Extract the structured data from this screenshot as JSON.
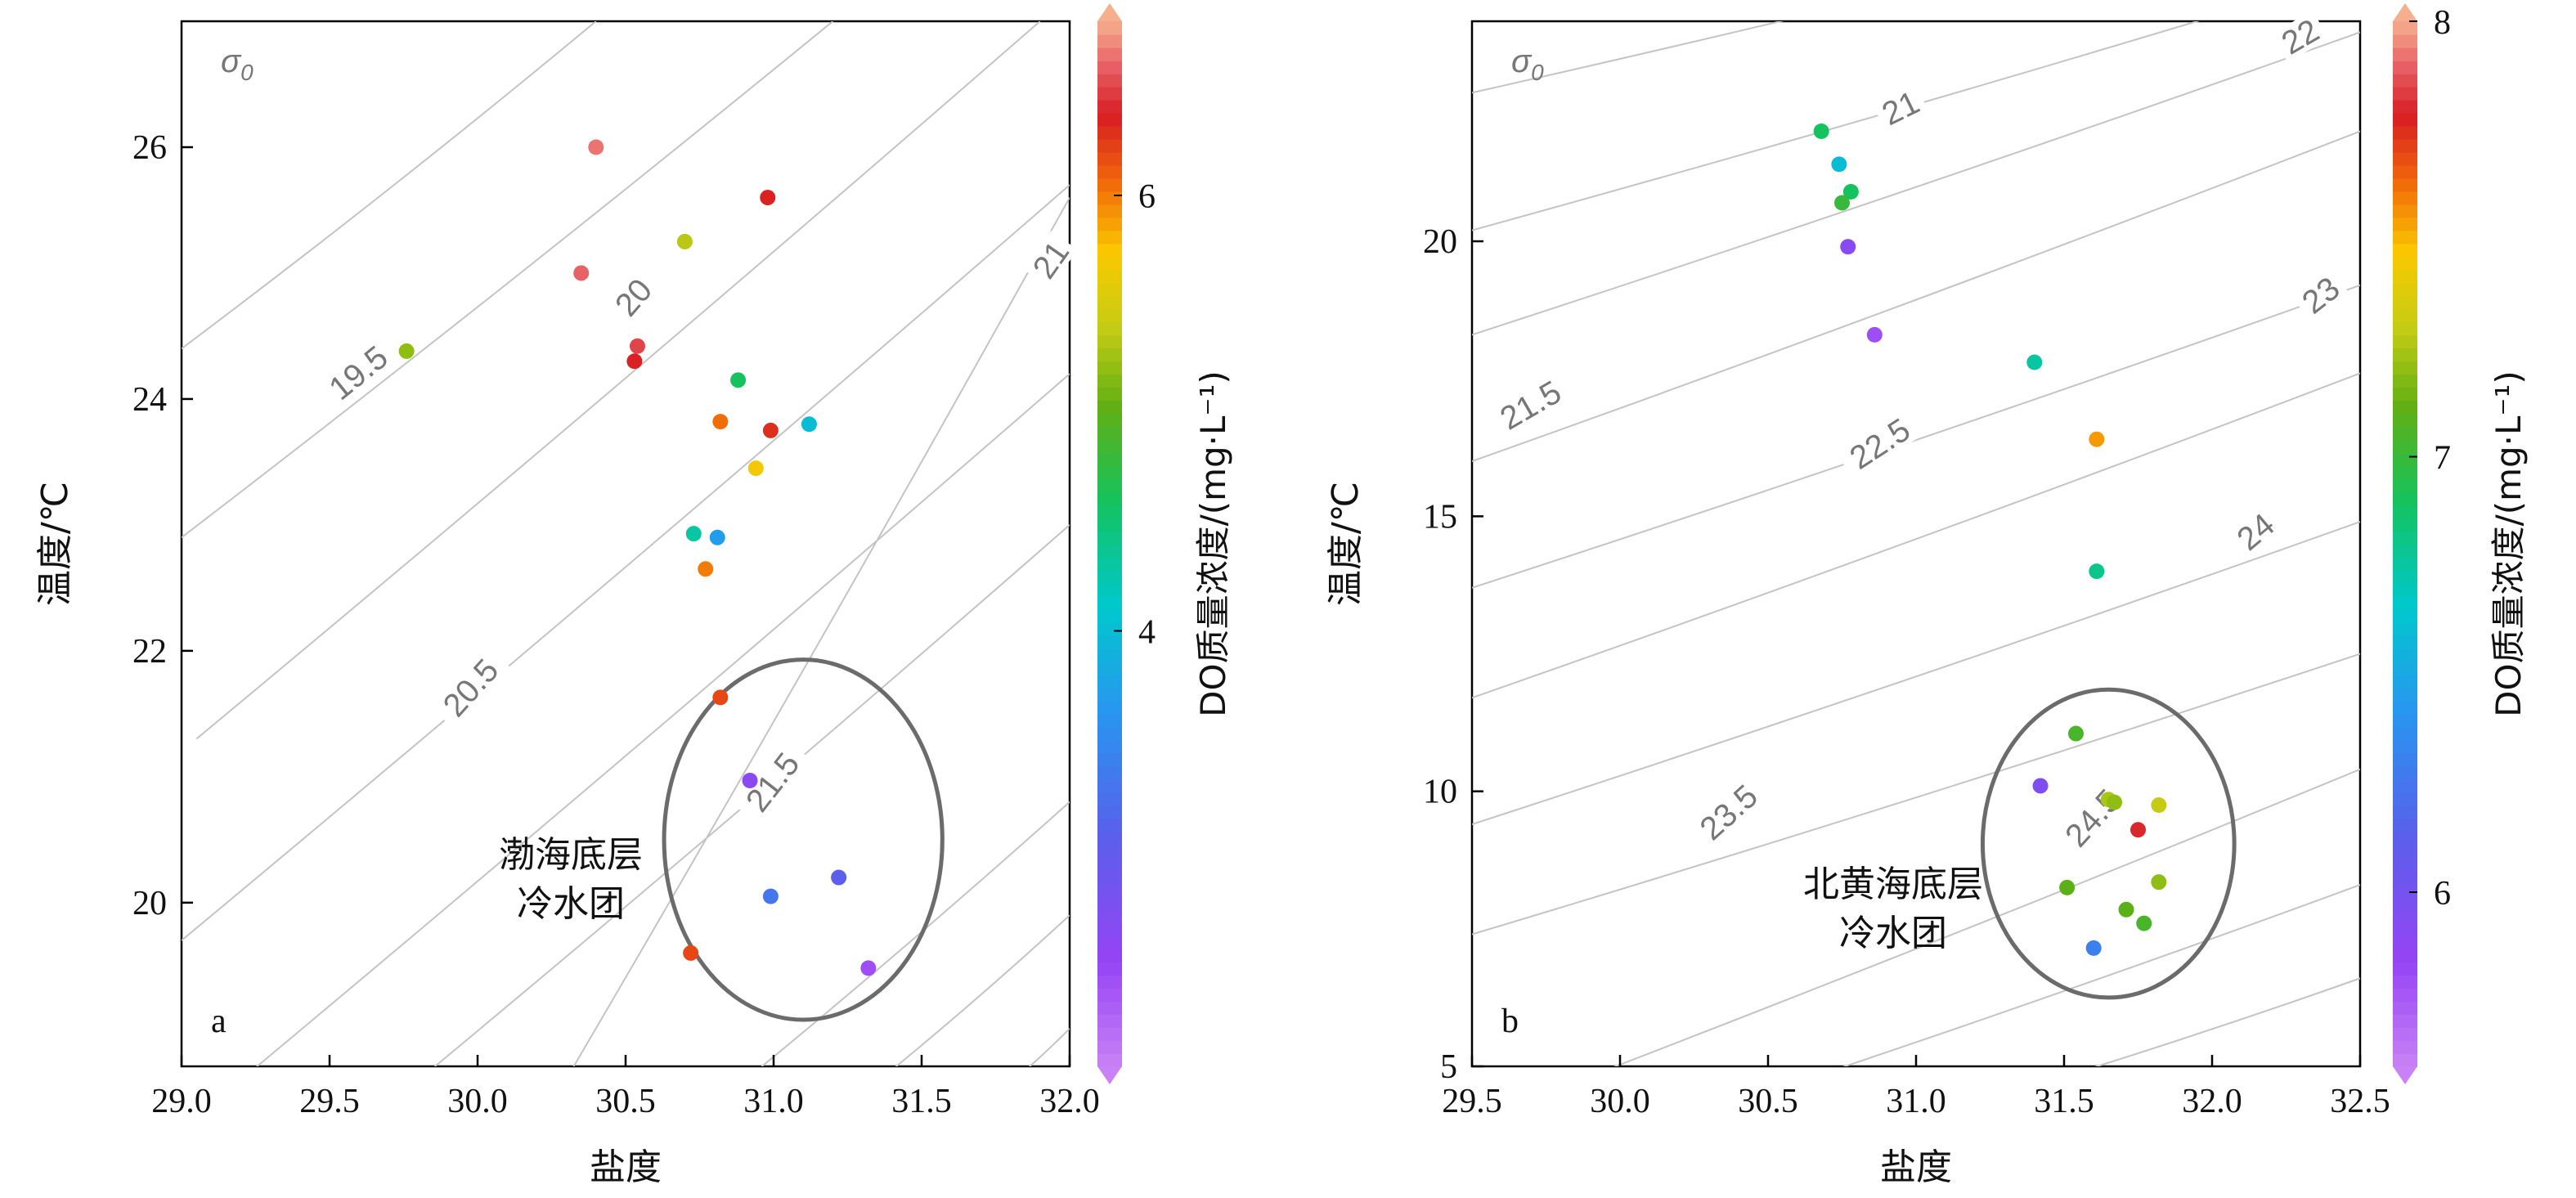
{
  "chart_data": [
    {
      "type": "scatter",
      "panel_label": "a",
      "xlabel": "盐度",
      "ylabel": "温度/℃",
      "xlim": [
        29.0,
        32.0
      ],
      "ylim": [
        18.7,
        27.0
      ],
      "xticks": [
        "29.0",
        "29.5",
        "30.0",
        "30.5",
        "31.0",
        "31.5",
        "32.0"
      ],
      "yticks": [
        "20",
        "22",
        "24",
        "26"
      ],
      "grid": false,
      "contour_symbol": "σ",
      "contour_symbol_sub": "0",
      "contours": [
        {
          "label": "19.5",
          "p1": [
            29.0,
            24.4
          ],
          "p2": [
            30.4,
            27.0
          ],
          "label_at": [
            29.6,
            24.2
          ],
          "rot": -39
        },
        {
          "label": "",
          "p1": [
            29.0,
            22.9
          ],
          "p2": [
            31.2,
            27.0
          ],
          "label_at": null,
          "rot": 0
        },
        {
          "label": "20",
          "p1": [
            29.05,
            21.3
          ],
          "p2": [
            31.9,
            27.0
          ],
          "label_at": [
            30.53,
            24.8
          ],
          "rot": -49
        },
        {
          "label": "",
          "p1": [
            29.0,
            19.7
          ],
          "p2": [
            32.0,
            25.7
          ],
          "label_at": null,
          "rot": 0
        },
        {
          "label": "20.5",
          "p1": [
            29.0,
            18.2
          ],
          "p2": [
            32.0,
            24.2
          ],
          "label_at": [
            29.98,
            21.7
          ],
          "rot": -48
        },
        {
          "label": "",
          "p1": [
            29.6,
            18.2
          ],
          "p2": [
            32.0,
            23.0
          ],
          "label_at": null,
          "rot": 0
        },
        {
          "label": "21",
          "p1": [
            30.2,
            18.2
          ],
          "p2": [
            32.0,
            25.6
          ],
          "label_at": [
            31.94,
            25.1
          ],
          "rot": -55
        },
        {
          "label": "21.5",
          "p1": [
            30.7,
            18.2
          ],
          "p2": [
            32.0,
            20.8
          ],
          "label_at": [
            31.0,
            20.95
          ],
          "rot": -52
        },
        {
          "label": "",
          "p1": [
            31.15,
            18.2
          ],
          "p2": [
            32.0,
            19.9
          ],
          "label_at": null,
          "rot": 0
        },
        {
          "label": "",
          "p1": [
            31.6,
            18.2
          ],
          "p2": [
            32.0,
            19.0
          ],
          "label_at": null,
          "rot": 0
        }
      ],
      "points": [
        {
          "x": 30.4,
          "y": 26.0,
          "v": 6.65
        },
        {
          "x": 30.98,
          "y": 25.6,
          "v": 6.35
        },
        {
          "x": 30.7,
          "y": 25.25,
          "v": 5.35
        },
        {
          "x": 30.35,
          "y": 25.0,
          "v": 6.6
        },
        {
          "x": 30.54,
          "y": 24.42,
          "v": 6.5
        },
        {
          "x": 29.76,
          "y": 24.38,
          "v": 5.2
        },
        {
          "x": 30.53,
          "y": 24.3,
          "v": 6.35
        },
        {
          "x": 30.88,
          "y": 24.15,
          "v": 4.6
        },
        {
          "x": 30.82,
          "y": 23.82,
          "v": 6.05
        },
        {
          "x": 30.99,
          "y": 23.75,
          "v": 6.3
        },
        {
          "x": 31.12,
          "y": 23.8,
          "v": 4.0
        },
        {
          "x": 30.94,
          "y": 23.45,
          "v": 5.7
        },
        {
          "x": 30.73,
          "y": 22.93,
          "v": 4.3
        },
        {
          "x": 30.81,
          "y": 22.9,
          "v": 3.7
        },
        {
          "x": 30.77,
          "y": 22.65,
          "v": 6.0
        },
        {
          "x": 30.82,
          "y": 21.63,
          "v": 6.2
        },
        {
          "x": 30.92,
          "y": 20.97,
          "v": 2.6
        },
        {
          "x": 31.22,
          "y": 20.2,
          "v": 3.05
        },
        {
          "x": 30.99,
          "y": 20.05,
          "v": 3.3
        },
        {
          "x": 30.72,
          "y": 19.6,
          "v": 6.2
        },
        {
          "x": 31.32,
          "y": 19.48,
          "v": 2.4
        }
      ],
      "ellipse": {
        "cx": 31.1,
        "cy": 20.5,
        "rx": 0.47,
        "ry": 1.43
      },
      "annotation_lines": [
        "渤海底层",
        "冷水团"
      ],
      "colorbar": {
        "label": "DO质量浓度/(mg·L⁻¹)",
        "vmin": 2.0,
        "vmax": 6.8,
        "ticks": [
          "4",
          "6"
        ],
        "tick_values": [
          4,
          6
        ]
      }
    },
    {
      "type": "scatter",
      "panel_label": "b",
      "xlabel": "盐度",
      "ylabel": "温度/℃",
      "xlim": [
        29.5,
        32.5
      ],
      "ylim": [
        5.0,
        24.0
      ],
      "xticks": [
        "29.5",
        "30.0",
        "30.5",
        "31.0",
        "31.5",
        "32.0",
        "32.5"
      ],
      "yticks": [
        "5",
        "10",
        "15",
        "20"
      ],
      "grid": false,
      "contour_symbol": "σ",
      "contour_symbol_sub": "0",
      "contours": [
        {
          "label": "21",
          "p1": [
            29.5,
            22.7
          ],
          "p2": [
            32.5,
            26.6
          ],
          "label_at": [
            30.95,
            22.4
          ],
          "rot": -26
        },
        {
          "label": "",
          "p1": [
            29.5,
            20.2
          ],
          "p2": [
            32.5,
            24.9
          ],
          "label_at": null,
          "rot": 0
        },
        {
          "label": "22",
          "p1": [
            29.5,
            18.3
          ],
          "p2": [
            32.5,
            23.8
          ],
          "label_at": [
            32.3,
            23.7
          ],
          "rot": -30
        },
        {
          "label": "21.5",
          "p1": [
            29.5,
            16.0
          ],
          "p2": [
            32.5,
            22.0
          ],
          "label_at": [
            29.7,
            17.0
          ],
          "rot": -30
        },
        {
          "label": "23",
          "p1": [
            29.5,
            13.7
          ],
          "p2": [
            32.5,
            19.2
          ],
          "label_at": [
            32.37,
            19.0
          ],
          "rot": -38
        },
        {
          "label": "22.5",
          "p1": [
            29.5,
            11.7
          ],
          "p2": [
            32.5,
            17.6
          ],
          "label_at": [
            30.88,
            16.3
          ],
          "rot": -33
        },
        {
          "label": "24",
          "p1": [
            29.5,
            9.4
          ],
          "p2": [
            32.5,
            14.9
          ],
          "label_at": [
            32.15,
            14.7
          ],
          "rot": -40
        },
        {
          "label": "23.5",
          "p1": [
            29.5,
            7.4
          ],
          "p2": [
            32.5,
            12.5
          ],
          "label_at": [
            30.37,
            9.6
          ],
          "rot": -42
        },
        {
          "label": "24.5",
          "p1": [
            29.5,
            4.0
          ],
          "p2": [
            32.5,
            10.4
          ],
          "label_at": [
            31.6,
            9.5
          ],
          "rot": -48
        },
        {
          "label": "",
          "p1": [
            30.2,
            4.0
          ],
          "p2": [
            32.5,
            8.3
          ],
          "label_at": null,
          "rot": 0
        },
        {
          "label": "",
          "p1": [
            31.0,
            4.0
          ],
          "p2": [
            32.5,
            6.6
          ],
          "label_at": null,
          "rot": 0
        }
      ],
      "points": [
        {
          "x": 30.68,
          "y": 22.0,
          "v": 6.9
        },
        {
          "x": 30.74,
          "y": 21.4,
          "v": 6.6
        },
        {
          "x": 30.78,
          "y": 20.9,
          "v": 6.9
        },
        {
          "x": 30.75,
          "y": 20.7,
          "v": 7.0
        },
        {
          "x": 30.77,
          "y": 19.9,
          "v": 5.9
        },
        {
          "x": 30.86,
          "y": 18.3,
          "v": 5.8
        },
        {
          "x": 31.4,
          "y": 17.8,
          "v": 6.75
        },
        {
          "x": 31.61,
          "y": 16.4,
          "v": 7.55
        },
        {
          "x": 31.61,
          "y": 14.0,
          "v": 6.8
        },
        {
          "x": 31.54,
          "y": 11.05,
          "v": 7.05
        },
        {
          "x": 31.42,
          "y": 10.1,
          "v": 5.95
        },
        {
          "x": 31.65,
          "y": 9.85,
          "v": 7.25
        },
        {
          "x": 31.67,
          "y": 9.8,
          "v": 7.2
        },
        {
          "x": 31.82,
          "y": 9.75,
          "v": 7.3
        },
        {
          "x": 31.75,
          "y": 9.3,
          "v": 7.8
        },
        {
          "x": 31.82,
          "y": 8.35,
          "v": 7.2
        },
        {
          "x": 31.51,
          "y": 8.25,
          "v": 7.1
        },
        {
          "x": 31.71,
          "y": 7.85,
          "v": 7.1
        },
        {
          "x": 31.77,
          "y": 7.6,
          "v": 7.05
        },
        {
          "x": 31.6,
          "y": 7.15,
          "v": 6.3
        }
      ],
      "ellipse": {
        "cx": 31.65,
        "cy": 9.05,
        "rx": 0.425,
        "ry": 2.8
      },
      "annotation_lines": [
        "北黄海底层",
        "冷水团"
      ],
      "colorbar": {
        "label": "DO质量浓度/(mg·L⁻¹)",
        "vmin": 5.6,
        "vmax": 8.0,
        "ticks": [
          "6",
          "7",
          "8"
        ],
        "tick_values": [
          6,
          7,
          8
        ]
      }
    }
  ]
}
